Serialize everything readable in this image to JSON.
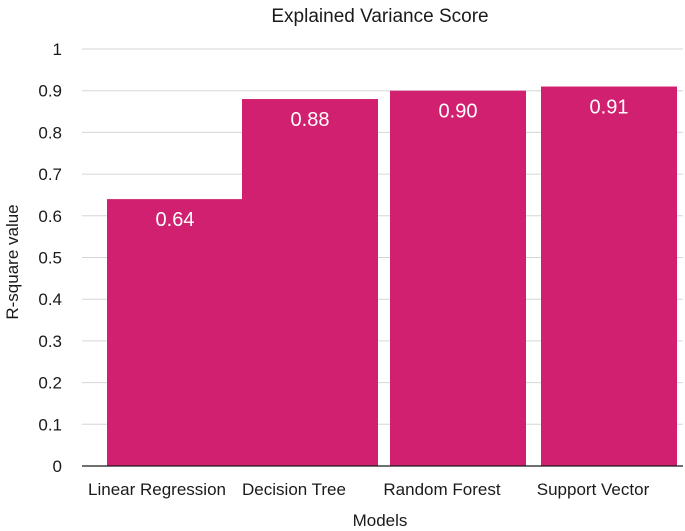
{
  "chart_data": {
    "type": "bar",
    "title": "Explained Variance Score",
    "xlabel": "Models",
    "ylabel": "R-square value",
    "categories": [
      "Linear Regression",
      "Decision Tree",
      "Random Forest",
      "Support Vector"
    ],
    "values": [
      0.64,
      0.88,
      0.9,
      0.91
    ],
    "data_labels": [
      "0.64",
      "0.88",
      "0.90",
      "0.91"
    ],
    "ylim": [
      0,
      1
    ],
    "yticks": [
      "0",
      "0.1",
      "0.2",
      "0.3",
      "0.4",
      "0.5",
      "0.6",
      "0.7",
      "0.8",
      "0.9",
      "1"
    ],
    "grid": true,
    "legend": "none",
    "bar_color": "#d0206f"
  }
}
